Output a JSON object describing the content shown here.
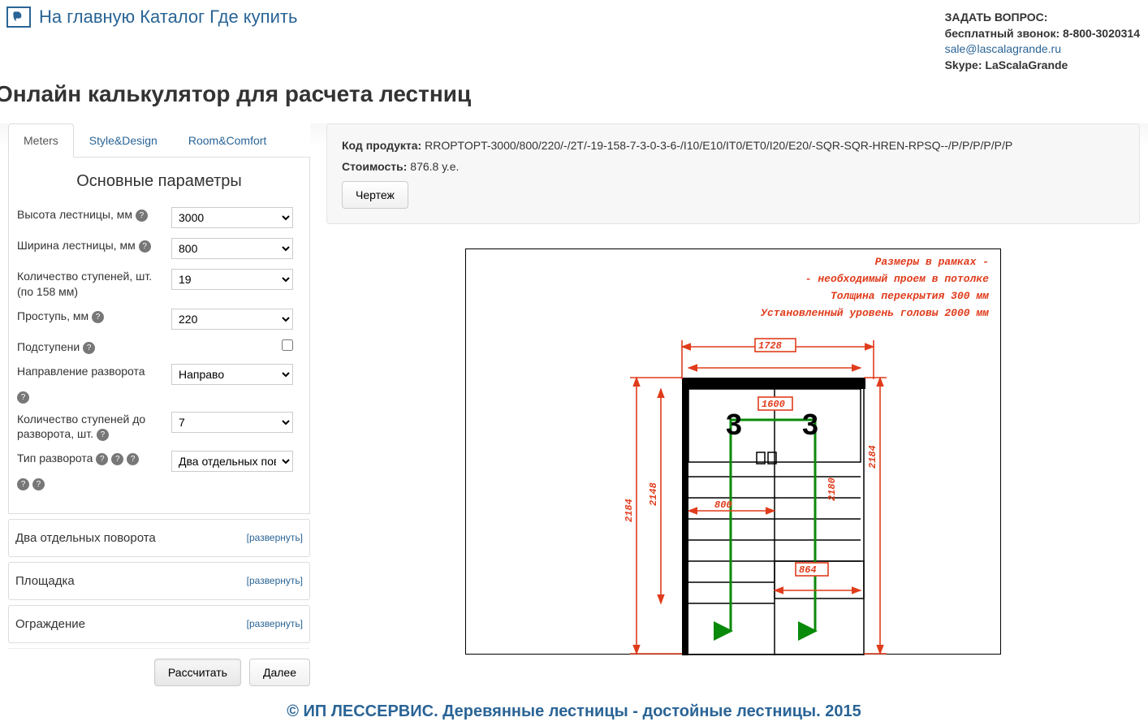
{
  "header": {
    "nav": [
      "На главную",
      "Каталог",
      "Где купить"
    ],
    "contact": {
      "ask": "ЗАДАТЬ ВОПРОС:",
      "phone": "бесплатный звонок: 8-800-3020314",
      "email": "sale@lascalagrande.ru",
      "skype": "Skype: LaScalaGrande"
    }
  },
  "title": "Онлайн калькулятор для расчета лестниц",
  "tabs": [
    "Meters",
    "Style&Design",
    "Room&Comfort"
  ],
  "active_tab": 0,
  "panel_heading": "Основные параметры",
  "form": {
    "items": [
      {
        "label": "Высота лестницы, мм",
        "value": "3000",
        "help": 1
      },
      {
        "label": "Ширина лестницы, мм",
        "value": "800",
        "help": 1
      },
      {
        "label": "Количество ступеней, шт. (по 158 мм)",
        "value": "19",
        "help": 0
      },
      {
        "label": "Проступь, мм",
        "value": "220",
        "help": 1
      },
      {
        "label": "Подступени",
        "checkbox": true,
        "help": 1
      },
      {
        "label": "Направление разворота",
        "value": "Направо",
        "help_below": 1
      },
      {
        "label": "Количество ступеней до разворота, шт.",
        "value": "7",
        "help": 1
      },
      {
        "label": "Тип разворота",
        "value": "Два отдельных пово",
        "help": 3,
        "help_below": 2
      }
    ]
  },
  "accordions": [
    {
      "title": "Два отдельных поворота",
      "action": "[развернуть]"
    },
    {
      "title": "Площадка",
      "action": "[развернуть]"
    },
    {
      "title": "Ограждение",
      "action": "[развернуть]"
    }
  ],
  "buttons": {
    "calc": "Рассчитать",
    "next": "Далее"
  },
  "info": {
    "code_label": "Код продукта:",
    "code": "RROPTOPT-3000/800/220/-/2T/-19-158-7-3-0-3-6-/I10/E10/IT0/ET0/I20/E20/-SQR-SQR-HREN-RPSQ--/P/P/P/P/P/P",
    "cost_label": "Стоимость:",
    "cost": "876.8 у.е.",
    "drawbtn": "Чертеж"
  },
  "drawing": {
    "annotations": [
      "Размеры в рамках -",
      "- необходимый проем в потолке",
      "Толщина перекрытия 300 мм",
      "Установленный уровень головы 2000 мм"
    ],
    "dims": {
      "top_outer": "1728",
      "top_inner": "1600",
      "left_outer": "2184",
      "left_inner": "2148",
      "right_outer": "2184",
      "right_inner": "2180",
      "mid": "800",
      "bot_right": "864",
      "bignum": "3"
    },
    "colors": {
      "dim": "#e03c1c",
      "struct": "#000000",
      "green": "#0a8a0a"
    }
  },
  "footer": "© ИП ЛЕССЕРВИС. Деревянные лестницы - достойные лестницы. 2015"
}
